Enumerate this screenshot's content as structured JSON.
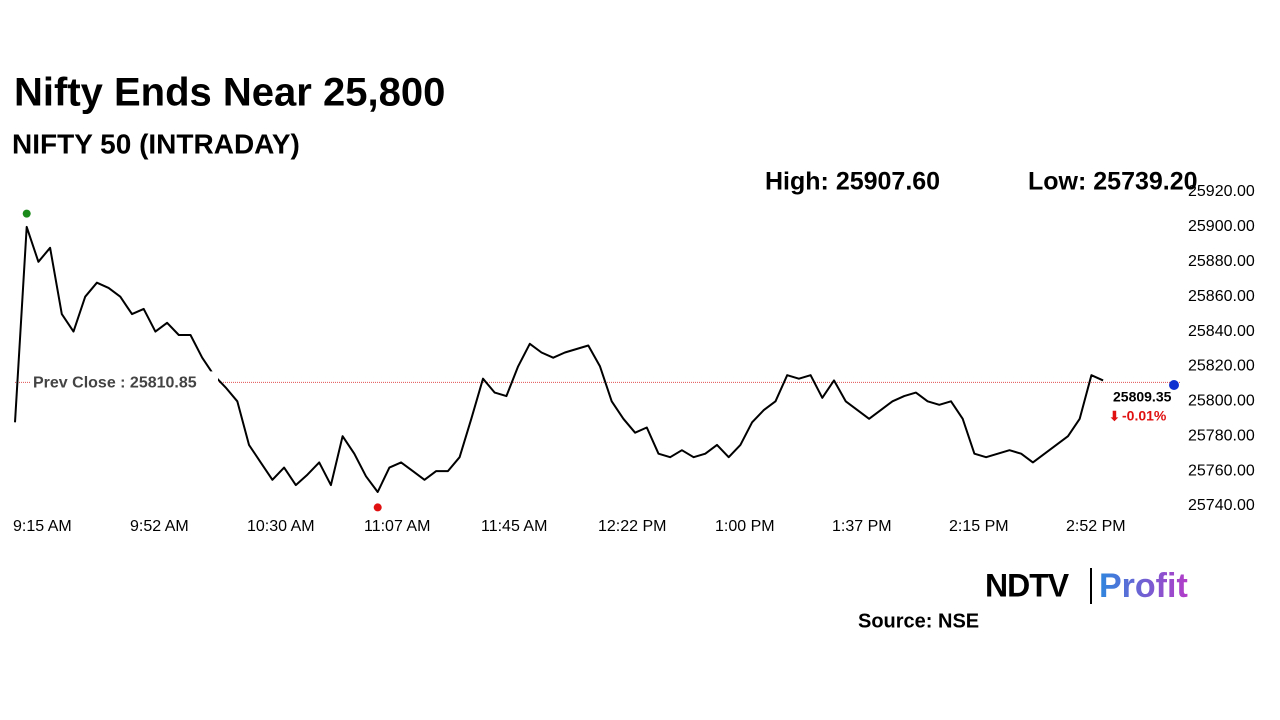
{
  "chart_data": {
    "type": "line",
    "title": "Nifty Ends Near 25,800",
    "subtitle": "NIFTY 50 (INTRADAY)",
    "high": {
      "value": 25907.6,
      "label": "High: 25907.60"
    },
    "low": {
      "value": 25739.2,
      "label": "Low: 25739.20"
    },
    "prev_close": {
      "value": 25810.85,
      "label": "Prev Close : 25810.85"
    },
    "last": 25809.35,
    "change": {
      "value": -0.01,
      "label": "-0.01%"
    },
    "color": "#000000",
    "categories": [
      "9:15 AM",
      null,
      null,
      null,
      null,
      null,
      null,
      null,
      null,
      null,
      "9:52 AM",
      null,
      null,
      null,
      null,
      null,
      null,
      null,
      null,
      null,
      "10:30 AM",
      null,
      null,
      null,
      null,
      null,
      null,
      null,
      null,
      null,
      "11:07 AM",
      null,
      null,
      null,
      null,
      null,
      null,
      null,
      null,
      null,
      "11:45 AM",
      null,
      null,
      null,
      null,
      null,
      null,
      null,
      null,
      null,
      "12:22 PM",
      null,
      null,
      null,
      null,
      null,
      null,
      null,
      null,
      null,
      "1:00 PM",
      null,
      null,
      null,
      null,
      null,
      null,
      null,
      null,
      null,
      "1:37 PM",
      null,
      null,
      null,
      null,
      null,
      null,
      null,
      null,
      null,
      "2:15 PM",
      null,
      null,
      null,
      null,
      null,
      null,
      null,
      null,
      null,
      "2:52 PM",
      null,
      null,
      null,
      null,
      null,
      null,
      null,
      null,
      null,
      null
    ],
    "values": [
      25788,
      25900,
      25880,
      25888,
      25850,
      25840,
      25860,
      25868,
      25865,
      25860,
      25850,
      25853,
      25840,
      25845,
      25838,
      25838,
      25825,
      25815,
      25808,
      25800,
      25775,
      25765,
      25755,
      25762,
      25752,
      25758,
      25765,
      25752,
      25780,
      25770,
      25757,
      25748,
      25762,
      25765,
      25760,
      25755,
      25760,
      25760,
      25768,
      25790,
      25813,
      25805,
      25803,
      25820,
      25833,
      25828,
      25825,
      25828,
      25830,
      25832,
      25820,
      25800,
      25790,
      25782,
      25785,
      25770,
      25768,
      25772,
      25768,
      25770,
      25775,
      25768,
      25775,
      25788,
      25795,
      25800,
      25815,
      25813,
      25815,
      25802,
      25812,
      25800,
      25795,
      25790,
      25795,
      25800,
      25803,
      25805,
      25800,
      25798,
      25800,
      25790,
      25770,
      25768,
      25770,
      25772,
      25770,
      25765,
      25770,
      25775,
      25780,
      25790,
      25815,
      25812,
      null,
      null,
      null,
      null,
      null,
      null,
      null
    ],
    "ylim": [
      25740,
      25920
    ],
    "yticks": [
      {
        "value": 25740,
        "label": "25740.00"
      },
      {
        "value": 25760,
        "label": "25760.00"
      },
      {
        "value": 25780,
        "label": "25780.00"
      },
      {
        "value": 25800,
        "label": "25800.00"
      },
      {
        "value": 25820,
        "label": "25820.00"
      },
      {
        "value": 25840,
        "label": "25840.00"
      },
      {
        "value": 25860,
        "label": "25860.00"
      },
      {
        "value": 25880,
        "label": "25880.00"
      },
      {
        "value": 25900,
        "label": "25900.00"
      },
      {
        "value": 25920,
        "label": "25920.00"
      }
    ],
    "logo": [
      "NDTV",
      "Profit"
    ],
    "source": "Source: NSE"
  }
}
